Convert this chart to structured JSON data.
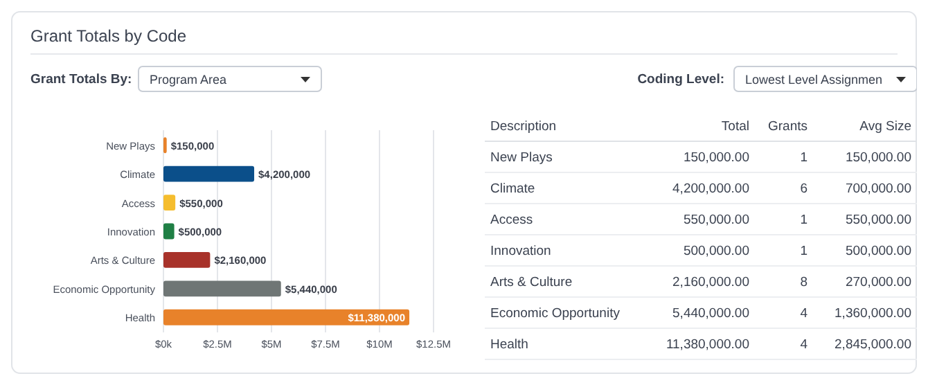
{
  "chart_data": [
    {
      "type": "bar",
      "orientation": "horizontal",
      "title": "Grant Totals by Code",
      "annotations": [
        "Grant Totals By:",
        "Program Area",
        "Coding Level:",
        "Lowest Level Assignmen"
      ],
      "categories": [
        "New Plays",
        "Climate",
        "Access",
        "Innovation",
        "Arts & Culture",
        "Economic Opportunity",
        "Health"
      ],
      "values": [
        150000,
        4200000,
        550000,
        500000,
        2160000,
        5440000,
        11380000
      ],
      "colors": [
        "#e8822a",
        "#0b4f8a",
        "#f5bd2e",
        "#1f7f45",
        "#a8322a",
        "#6f7675",
        "#e8822a"
      ],
      "value_labels": [
        "$150,000",
        "$4,200,000",
        "$550,000",
        "$500,000",
        "$2,160,000",
        "$5,440,000",
        "$11,380,000"
      ],
      "xlim": [
        0,
        12500000
      ],
      "xticks": [
        {
          "value": 0,
          "label": "$0k"
        },
        {
          "value": 2500000,
          "label": "$2.5M"
        },
        {
          "value": 5000000,
          "label": "$5M"
        },
        {
          "value": 7500000,
          "label": "$7.5M"
        },
        {
          "value": 10000000,
          "label": "$10M"
        },
        {
          "value": 12500000,
          "label": "$12.5M"
        }
      ],
      "grid": "x"
    },
    {
      "type": "other",
      "xlabel": "Description",
      "categories": [
        "New Plays",
        "Climate",
        "Access",
        "Innovation",
        "Arts & Culture",
        "Economic Opportunity",
        "Health"
      ],
      "series": [
        {
          "name": "Total",
          "values": [
            150000,
            4200000,
            550000,
            500000,
            2160000,
            5440000,
            11380000
          ],
          "value_labels": [
            "150,000.00",
            "4,200,000.00",
            "550,000.00",
            "500,000.00",
            "2,160,000.00",
            "5,440,000.00",
            "11,380,000.00"
          ]
        },
        {
          "name": "Grants",
          "values": [
            1,
            6,
            1,
            1,
            8,
            4,
            4
          ],
          "value_labels": [
            "1",
            "6",
            "1",
            "1",
            "8",
            "4",
            "4"
          ]
        },
        {
          "name": "Avg Size",
          "values": [
            150000,
            700000,
            550000,
            500000,
            270000,
            1360000,
            2845000
          ],
          "value_labels": [
            "150,000.00",
            "700,000.00",
            "550,000.00",
            "500,000.00",
            "270,000.00",
            "1,360,000.00",
            "2,845,000.00"
          ]
        }
      ]
    }
  ]
}
